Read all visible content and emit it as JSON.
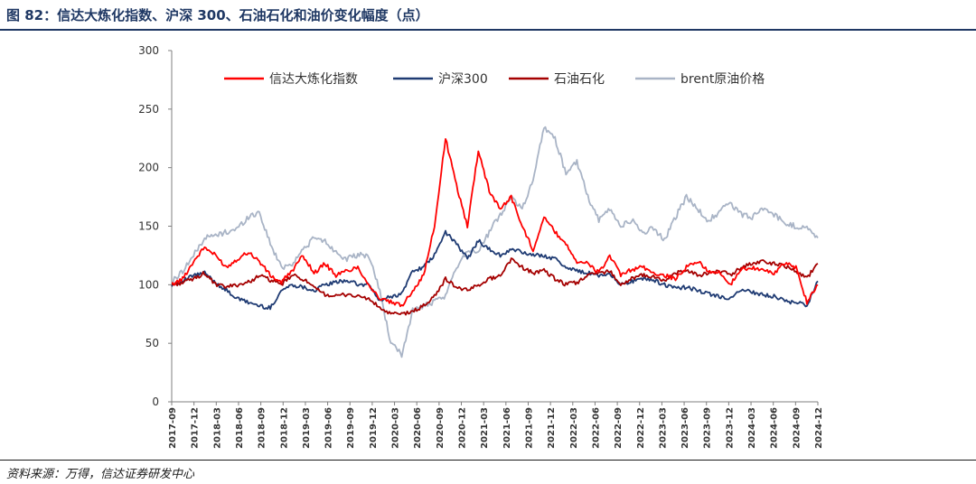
{
  "figure": {
    "title": "图 82：信达大炼化指数、沪深 300、石油石化和油价变化幅度（点）",
    "source": "资料来源：万得，信达证券研发中心"
  },
  "chart_data": {
    "type": "line",
    "title": "",
    "xlabel": "",
    "ylabel": "",
    "ylim": [
      0,
      300
    ],
    "yticks": [
      "0",
      "50",
      "100",
      "150",
      "200",
      "250",
      "300"
    ],
    "xticks": [
      "2017-09",
      "2017-12",
      "2018-03",
      "2018-06",
      "2018-09",
      "2018-12",
      "2019-03",
      "2019-06",
      "2019-09",
      "2019-12",
      "2020-03",
      "2020-06",
      "2020-09",
      "2020-12",
      "2021-03",
      "2021-06",
      "2021-09",
      "2021-12",
      "2022-03",
      "2022-06",
      "2022-09",
      "2022-12",
      "2023-03",
      "2023-06",
      "2023-09",
      "2023-12",
      "2024-03",
      "2024-06",
      "2024-09",
      "2024-12"
    ],
    "grid": false,
    "legend_position": "top",
    "series": [
      {
        "name": "信达大炼化指数",
        "color": "#ff0000",
        "values": [
          100,
          105,
          120,
          132,
          125,
          115,
          122,
          128,
          120,
          108,
          102,
          112,
          125,
          110,
          118,
          108,
          112,
          115,
          100,
          88,
          85,
          82,
          95,
          108,
          150,
          225,
          185,
          150,
          215,
          180,
          165,
          175,
          150,
          130,
          158,
          145,
          135,
          120,
          118,
          110,
          125,
          108,
          113,
          115,
          110,
          108,
          105,
          115,
          120,
          112,
          110,
          100,
          113,
          115,
          112,
          110,
          118,
          115,
          85,
          100
        ]
      },
      {
        "name": "沪深300",
        "color": "#1f3b73",
        "values": [
          100,
          103,
          108,
          110,
          102,
          95,
          88,
          85,
          82,
          80,
          95,
          100,
          98,
          95,
          100,
          102,
          104,
          100,
          100,
          86,
          90,
          92,
          112,
          115,
          125,
          145,
          135,
          122,
          138,
          130,
          125,
          130,
          128,
          125,
          125,
          122,
          115,
          112,
          110,
          108,
          110,
          100,
          103,
          105,
          104,
          100,
          97,
          98,
          95,
          92,
          90,
          88,
          95,
          94,
          91,
          90,
          86,
          85,
          82,
          103
        ]
      },
      {
        "name": "石油石化",
        "color": "#a50000",
        "values": [
          100,
          102,
          105,
          110,
          100,
          98,
          100,
          102,
          108,
          104,
          100,
          108,
          105,
          97,
          92,
          90,
          92,
          90,
          88,
          80,
          75,
          75,
          77,
          82,
          90,
          105,
          98,
          95,
          100,
          105,
          108,
          122,
          115,
          110,
          112,
          105,
          100,
          102,
          108,
          110,
          112,
          100,
          105,
          108,
          107,
          103,
          110,
          112,
          108,
          110,
          112,
          108,
          115,
          118,
          120,
          118,
          116,
          112,
          106,
          118
        ]
      },
      {
        "name": "brent原油价格",
        "color": "#a9b4c6",
        "values": [
          102,
          112,
          125,
          140,
          142,
          145,
          148,
          158,
          162,
          135,
          115,
          118,
          130,
          140,
          137,
          128,
          122,
          125,
          125,
          95,
          50,
          40,
          78,
          82,
          85,
          90,
          115,
          130,
          128,
          145,
          160,
          175,
          165,
          190,
          235,
          225,
          195,
          205,
          175,
          155,
          165,
          150,
          155,
          145,
          148,
          138,
          158,
          175,
          165,
          155,
          162,
          170,
          160,
          158,
          165,
          160,
          152,
          150,
          148,
          140
        ]
      }
    ]
  }
}
